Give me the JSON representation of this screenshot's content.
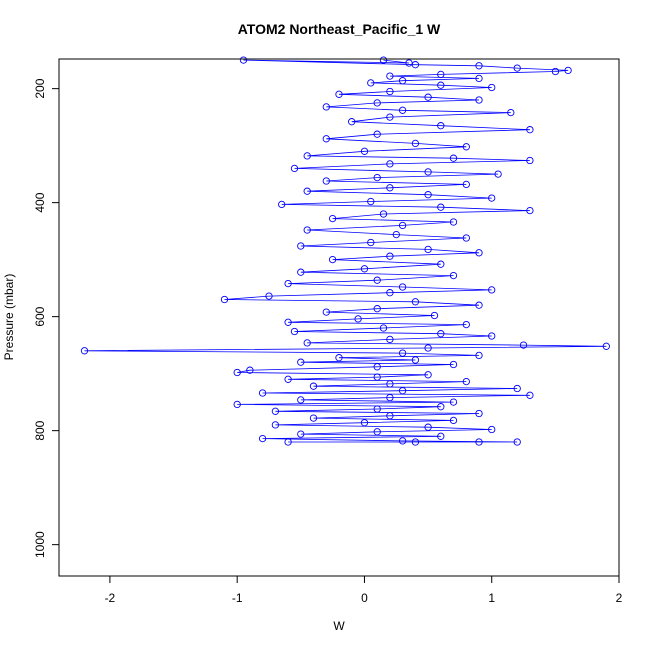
{
  "chart_data": {
    "type": "scatter",
    "title": "ATOM2 Northeast_Pacific_1 W",
    "xlabel": "W",
    "ylabel": "Pressure (mbar)",
    "xlim": [
      -2.4,
      2.0
    ],
    "ylim": [
      1055,
      148
    ],
    "y_reversed": true,
    "x_ticks": [
      -2,
      -1,
      0,
      1,
      2
    ],
    "y_ticks": [
      200,
      400,
      600,
      800,
      1000
    ],
    "marker_color": "#0000FF",
    "line_color": "#0000FF",
    "marker": "open-circle",
    "connected": true,
    "series": [
      {
        "points": [
          [
            0.15,
            150
          ],
          [
            0.35,
            155
          ],
          [
            -0.95,
            150
          ],
          [
            0.4,
            158
          ],
          [
            0.9,
            160
          ],
          [
            1.2,
            164
          ],
          [
            1.6,
            168
          ],
          [
            1.5,
            170
          ],
          [
            0.6,
            175
          ],
          [
            0.2,
            178
          ],
          [
            0.9,
            182
          ],
          [
            0.3,
            186
          ],
          [
            0.05,
            190
          ],
          [
            0.6,
            194
          ],
          [
            1.0,
            198
          ],
          [
            0.2,
            205
          ],
          [
            -0.2,
            210
          ],
          [
            0.5,
            215
          ],
          [
            0.9,
            220
          ],
          [
            0.1,
            225
          ],
          [
            -0.3,
            232
          ],
          [
            0.3,
            238
          ],
          [
            1.15,
            242
          ],
          [
            0.2,
            250
          ],
          [
            -0.1,
            258
          ],
          [
            0.6,
            265
          ],
          [
            1.3,
            272
          ],
          [
            0.1,
            280
          ],
          [
            -0.3,
            288
          ],
          [
            0.4,
            296
          ],
          [
            0.8,
            302
          ],
          [
            0.0,
            310
          ],
          [
            -0.45,
            318
          ],
          [
            0.7,
            322
          ],
          [
            1.3,
            326
          ],
          [
            0.2,
            332
          ],
          [
            -0.55,
            340
          ],
          [
            0.5,
            346
          ],
          [
            1.05,
            350
          ],
          [
            0.1,
            356
          ],
          [
            -0.3,
            362
          ],
          [
            0.8,
            368
          ],
          [
            0.2,
            374
          ],
          [
            -0.45,
            380
          ],
          [
            0.5,
            386
          ],
          [
            1.0,
            392
          ],
          [
            0.05,
            398
          ],
          [
            -0.65,
            403
          ],
          [
            0.6,
            408
          ],
          [
            1.3,
            414
          ],
          [
            0.15,
            420
          ],
          [
            -0.25,
            428
          ],
          [
            0.7,
            434
          ],
          [
            0.3,
            440
          ],
          [
            -0.45,
            448
          ],
          [
            0.25,
            456
          ],
          [
            0.8,
            462
          ],
          [
            0.05,
            470
          ],
          [
            -0.5,
            476
          ],
          [
            0.5,
            482
          ],
          [
            0.9,
            488
          ],
          [
            0.2,
            494
          ],
          [
            -0.25,
            500
          ],
          [
            0.6,
            508
          ],
          [
            0.0,
            516
          ],
          [
            -0.5,
            522
          ],
          [
            0.7,
            528
          ],
          [
            0.1,
            536
          ],
          [
            -0.6,
            542
          ],
          [
            0.3,
            548
          ],
          [
            1.0,
            553
          ],
          [
            0.2,
            558
          ],
          [
            -0.75,
            564
          ],
          [
            -1.1,
            570
          ],
          [
            0.4,
            574
          ],
          [
            0.9,
            580
          ],
          [
            0.1,
            586
          ],
          [
            -0.3,
            592
          ],
          [
            0.55,
            598
          ],
          [
            -0.05,
            604
          ],
          [
            -0.6,
            610
          ],
          [
            0.8,
            614
          ],
          [
            0.15,
            620
          ],
          [
            -0.55,
            626
          ],
          [
            0.6,
            630
          ],
          [
            1.0,
            634
          ],
          [
            0.2,
            640
          ],
          [
            -0.45,
            646
          ],
          [
            1.25,
            650
          ],
          [
            1.9,
            652
          ],
          [
            0.5,
            655
          ],
          [
            -2.2,
            660
          ],
          [
            0.3,
            664
          ],
          [
            0.9,
            668
          ],
          [
            -0.2,
            672
          ],
          [
            0.4,
            676
          ],
          [
            -0.5,
            680
          ],
          [
            0.7,
            684
          ],
          [
            0.1,
            688
          ],
          [
            -0.9,
            694
          ],
          [
            -1.0,
            698
          ],
          [
            0.5,
            702
          ],
          [
            0.1,
            706
          ],
          [
            -0.6,
            710
          ],
          [
            0.8,
            714
          ],
          [
            0.2,
            718
          ],
          [
            -0.4,
            722
          ],
          [
            1.2,
            726
          ],
          [
            0.3,
            730
          ],
          [
            -0.8,
            734
          ],
          [
            1.3,
            738
          ],
          [
            0.2,
            742
          ],
          [
            -0.5,
            746
          ],
          [
            0.7,
            750
          ],
          [
            -1.0,
            754
          ],
          [
            0.6,
            758
          ],
          [
            0.1,
            762
          ],
          [
            -0.7,
            766
          ],
          [
            0.9,
            770
          ],
          [
            0.2,
            774
          ],
          [
            -0.4,
            778
          ],
          [
            0.7,
            782
          ],
          [
            0.0,
            786
          ],
          [
            -0.7,
            790
          ],
          [
            0.5,
            794
          ],
          [
            1.0,
            798
          ],
          [
            0.1,
            802
          ],
          [
            -0.5,
            806
          ],
          [
            0.6,
            810
          ],
          [
            -0.8,
            814
          ],
          [
            0.3,
            818
          ],
          [
            1.2,
            820
          ],
          [
            -0.6,
            820
          ],
          [
            0.4,
            820
          ],
          [
            0.9,
            820
          ]
        ]
      }
    ]
  }
}
